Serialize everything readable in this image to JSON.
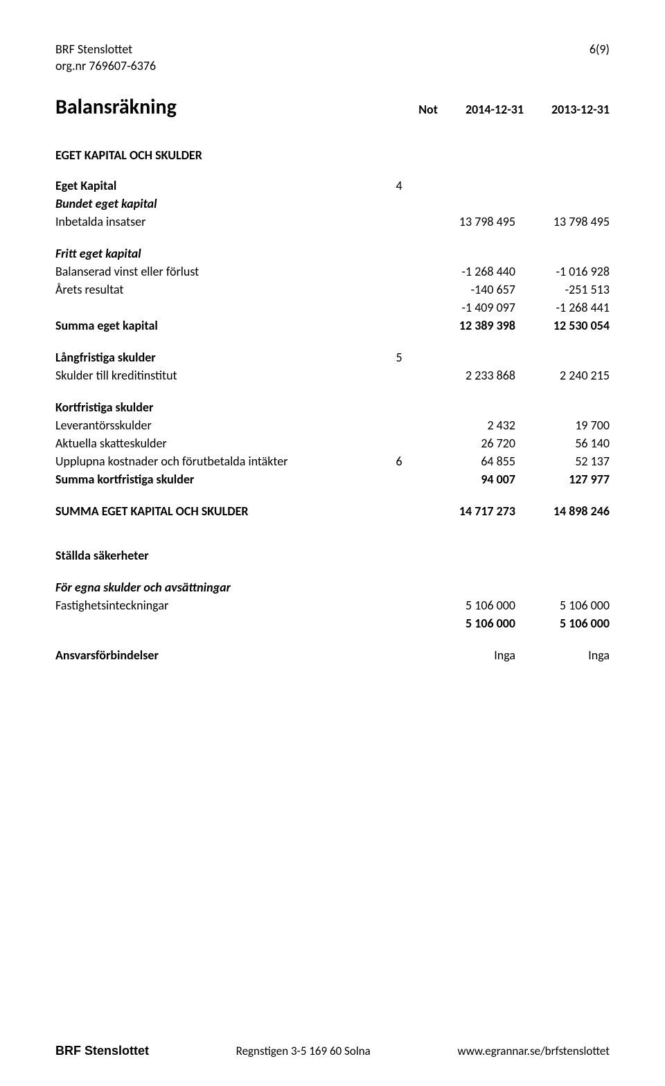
{
  "header": {
    "company": "BRF Stenslottet",
    "orgnr": "org.nr 769607-6376",
    "page_indicator": "6(9)"
  },
  "title": {
    "heading": "Balansräkning",
    "note_col": "Not",
    "col1": "2014-12-31",
    "col2": "2013-12-31"
  },
  "section_main": "EGET KAPITAL OCH SKULDER",
  "rows": {
    "eget_kapital": {
      "label": "Eget Kapital",
      "note": "4"
    },
    "bundet": {
      "label": "Bundet eget kapital"
    },
    "inbetalda": {
      "label": "Inbetalda insatser",
      "c1": "13 798 495",
      "c2": "13 798 495"
    },
    "fritt": {
      "label": "Fritt eget kapital"
    },
    "balanserad": {
      "label": "Balanserad vinst eller förlust",
      "c1": "-1 268 440",
      "c2": "-1 016 928"
    },
    "arets": {
      "label": "Årets resultat",
      "c1": "-140 657",
      "c2": "-251 513"
    },
    "subtotal_fritt": {
      "c1": "-1 409 097",
      "c2": "-1 268 441"
    },
    "summa_eget": {
      "label": "Summa eget kapital",
      "c1": "12 389 398",
      "c2": "12 530 054"
    },
    "lang": {
      "label": "Långfristiga skulder",
      "note": "5"
    },
    "kredit": {
      "label": "Skulder till kreditinstitut",
      "c1": "2 233 868",
      "c2": "2 240 215"
    },
    "kort": {
      "label": "Kortfristiga skulder"
    },
    "lev": {
      "label": "Leverantörsskulder",
      "c1": "2 432",
      "c2": "19 700"
    },
    "skatt": {
      "label": "Aktuella skatteskulder",
      "c1": "26 720",
      "c2": "56 140"
    },
    "upplupna": {
      "label": "Upplupna kostnader och förutbetalda intäkter",
      "note": "6",
      "c1": "64 855",
      "c2": "52 137"
    },
    "summa_kort": {
      "label": "Summa kortfristiga skulder",
      "c1": "94 007",
      "c2": "127 977"
    },
    "summa_total": {
      "label": "SUMMA EGET KAPITAL OCH SKULDER",
      "c1": "14 717 273",
      "c2": "14 898 246"
    },
    "stallda": {
      "label": "Ställda säkerheter"
    },
    "foregna": {
      "label": "För egna skulder och avsättningar"
    },
    "fastighet": {
      "label": "Fastighetsinteckningar",
      "c1": "5 106 000",
      "c2": "5 106 000"
    },
    "fastighet2": {
      "c1": "5 106 000",
      "c2": "5 106 000"
    },
    "ansvar": {
      "label": "Ansvarsförbindelser",
      "c1": "Inga",
      "c2": "Inga"
    }
  },
  "footer": {
    "brand": "BRF Stenslottet",
    "address": "Regnstigen 3-5   169 60 Solna",
    "url": "www.egrannar.se/brfstenslottet"
  },
  "style": {
    "body_font_size": 18,
    "title_font_size": 30,
    "text_color": "#000000",
    "background_color": "#ffffff"
  }
}
